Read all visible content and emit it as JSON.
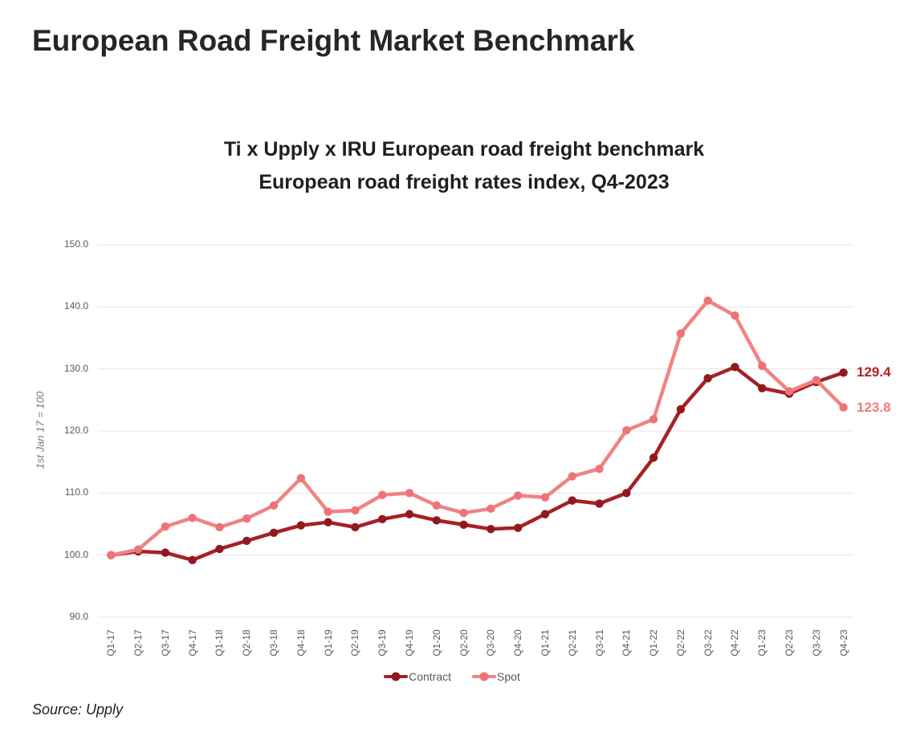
{
  "page": {
    "title": "European Road Freight Market Benchmark",
    "source": "Source: Upply"
  },
  "chart_data": {
    "type": "line",
    "title_line1": "Ti x Upply x IRU European road freight benchmark",
    "title_line2": "European road freight rates index, Q4-2023",
    "ylabel": "1st Jan 17 = 100",
    "ylim": [
      90,
      150
    ],
    "yticks": [
      90,
      100,
      110,
      120,
      130,
      140,
      150
    ],
    "grid": "horizontal",
    "gridline_color": "#E4E4E4",
    "legend_position": "bottom",
    "categories": [
      "Q1-17",
      "Q2-17",
      "Q3-17",
      "Q4-17",
      "Q1-18",
      "Q2-18",
      "Q3-18",
      "Q4-18",
      "Q1-19",
      "Q2-19",
      "Q3-19",
      "Q4-19",
      "Q1-20",
      "Q2-20",
      "Q3-20",
      "Q4-20",
      "Q1-21",
      "Q2-21",
      "Q3-21",
      "Q4-21",
      "Q1-22",
      "Q2-22",
      "Q3-22",
      "Q4-22",
      "Q1-23",
      "Q2-23",
      "Q3-23",
      "Q4-23"
    ],
    "series": [
      {
        "name": "Contract",
        "color": "#A52126",
        "marker_color": "#91191E",
        "label_color": "#AF2026",
        "end_label": "129.4",
        "values": [
          100.0,
          100.6,
          100.4,
          99.2,
          101.0,
          102.3,
          103.6,
          104.8,
          105.3,
          104.5,
          105.8,
          106.6,
          105.6,
          104.9,
          104.2,
          104.4,
          106.6,
          108.8,
          108.3,
          110.0,
          115.7,
          123.5,
          128.5,
          130.3,
          126.9,
          126.0,
          127.9,
          129.4
        ]
      },
      {
        "name": "Spot",
        "color": "#F08384",
        "marker_color": "#EE7377",
        "label_color": "#EF7C7D",
        "end_label": "123.8",
        "values": [
          100.0,
          100.9,
          104.6,
          106.0,
          104.5,
          105.9,
          108.0,
          112.4,
          107.0,
          107.2,
          109.7,
          110.0,
          108.0,
          106.8,
          107.5,
          109.6,
          109.3,
          112.7,
          113.9,
          120.1,
          121.9,
          135.7,
          141.0,
          138.6,
          130.5,
          126.4,
          128.2,
          123.8
        ]
      }
    ]
  }
}
